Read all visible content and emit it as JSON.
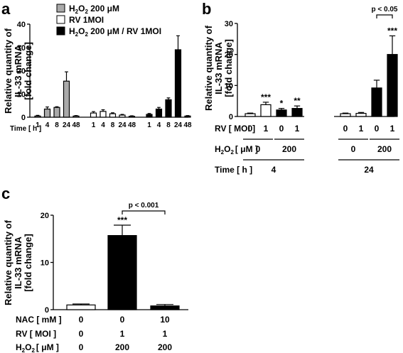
{
  "panels": [
    {
      "id": "a",
      "label": "a",
      "ylabel_lines": [
        "Relative quantity of",
        "IL-33 mRNA",
        "[fold change]"
      ]
    },
    {
      "id": "b",
      "label": "b",
      "ylabel_lines": [
        "Relative quantity of",
        "IL-33 mRNA",
        "[fold change]"
      ]
    },
    {
      "id": "c",
      "label": "c",
      "ylabel_lines": [
        "Relative quantity of",
        "IL-33 mRNA",
        "[fold change]"
      ]
    }
  ],
  "legend_a": {
    "h2o2": [
      "H",
      "2",
      "O",
      "2",
      " 200 μM"
    ],
    "rv": "RV 1MOI",
    "combo": [
      "H",
      "2",
      "O",
      "2",
      " 200 μM / RV 1MOI"
    ]
  },
  "table_b": {
    "rv_label": "RV [ MOI ]",
    "h2o2_label": [
      "H",
      "2",
      "O",
      "2",
      "[ μM ]"
    ],
    "time_label": "Time [ h ]",
    "rv_values": [
      "0",
      "1",
      "0",
      "1",
      "0",
      "1",
      "0",
      "1"
    ],
    "h2o2_values": [
      "0",
      "200",
      "0",
      "200"
    ],
    "time_values": [
      "4",
      "24"
    ]
  },
  "table_c": {
    "nac_label": "NAC [ mM ]",
    "rv_label": "RV [ MOI ]",
    "h2o2_label": [
      "H",
      "2",
      "O",
      "2",
      "[ μM ]"
    ],
    "nac_values": [
      "0",
      "0",
      "10"
    ],
    "rv_values": [
      "0",
      "1",
      "1"
    ],
    "h2o2_values": [
      "0",
      "200",
      "200"
    ]
  },
  "chart_data": [
    {
      "panel": "a",
      "type": "bar",
      "xlabel": "Time [ h ]",
      "ylim": [
        0,
        40
      ],
      "yticks": [
        0,
        10,
        20,
        30,
        40
      ],
      "series": [
        {
          "name": "H2O2 200 μM",
          "color": "#aaaaaa",
          "x": [
            "1",
            "4",
            "8",
            "24",
            "48"
          ],
          "values": [
            0.5,
            3.5,
            4.2,
            15.5,
            0.5
          ],
          "errors": [
            0.3,
            0.9,
            0.3,
            4.0,
            0.2
          ]
        },
        {
          "name": "RV 1MOI",
          "color": "#ffffff",
          "x": [
            "1",
            "4",
            "8",
            "24",
            "48"
          ],
          "values": [
            1.8,
            2.5,
            1.5,
            0.9,
            0.4
          ],
          "errors": [
            0.6,
            0.7,
            0.4,
            0.3,
            0.2
          ]
        },
        {
          "name": "H2O2 200 μM / RV 1MOI",
          "color": "#000000",
          "x": [
            "1",
            "4",
            "8",
            "24",
            "48"
          ],
          "values": [
            1.2,
            3.5,
            7.5,
            29,
            0.5
          ],
          "errors": [
            0.4,
            0.7,
            0.8,
            6.0,
            0.2
          ]
        }
      ]
    },
    {
      "panel": "b",
      "type": "bar",
      "ylim": [
        0,
        30
      ],
      "yticks": [
        0,
        10,
        20,
        30
      ],
      "bars": [
        {
          "rv": 0,
          "h2o2": 0,
          "time": 4,
          "value": 0.9,
          "error": 0.2,
          "fill": "#ffffff",
          "sig": ""
        },
        {
          "rv": 1,
          "h2o2": 0,
          "time": 4,
          "value": 3.8,
          "error": 0.8,
          "fill": "#ffffff",
          "sig": "***"
        },
        {
          "rv": 0,
          "h2o2": 200,
          "time": 4,
          "value": 2.1,
          "error": 0.5,
          "fill": "#000000",
          "sig": "*"
        },
        {
          "rv": 1,
          "h2o2": 200,
          "time": 4,
          "value": 2.6,
          "error": 0.8,
          "fill": "#000000",
          "sig": "**"
        },
        {
          "rv": 0,
          "h2o2": 0,
          "time": 24,
          "value": 0.9,
          "error": 0.2,
          "fill": "#ffffff",
          "sig": ""
        },
        {
          "rv": 1,
          "h2o2": 0,
          "time": 24,
          "value": 1.0,
          "error": 0.3,
          "fill": "#ffffff",
          "sig": ""
        },
        {
          "rv": 0,
          "h2o2": 200,
          "time": 24,
          "value": 9.2,
          "error": 2.5,
          "fill": "#000000",
          "sig": ""
        },
        {
          "rv": 1,
          "h2o2": 200,
          "time": 24,
          "value": 20,
          "error": 6.0,
          "fill": "#000000",
          "sig": "***"
        }
      ],
      "bracket": {
        "from": 6,
        "to": 7,
        "label": "p < 0.05"
      }
    },
    {
      "panel": "c",
      "type": "bar",
      "ylim": [
        0,
        20
      ],
      "yticks": [
        0,
        10,
        20
      ],
      "bars": [
        {
          "nac": 0,
          "rv": 0,
          "h2o2": 0,
          "value": 1.0,
          "error": 0.2,
          "fill": "#ffffff",
          "sig": ""
        },
        {
          "nac": 0,
          "rv": 1,
          "h2o2": 200,
          "value": 15.7,
          "error": 2.2,
          "fill": "#000000",
          "sig": "***"
        },
        {
          "nac": 10,
          "rv": 1,
          "h2o2": 200,
          "value": 0.8,
          "error": 0.3,
          "fill": "#000000",
          "sig": ""
        }
      ],
      "bracket": {
        "from": 1,
        "to": 2,
        "label": "p < 0.001"
      }
    }
  ]
}
